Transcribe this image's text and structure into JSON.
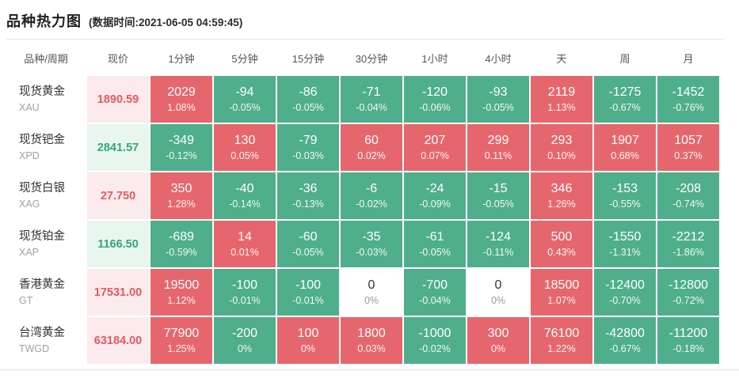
{
  "header": {
    "title": "品种热力图",
    "timestamp_label": "(数据时间:2021-06-05 04:59:45)"
  },
  "colors": {
    "up": "#e5676d",
    "down": "#4fae8c",
    "price_up_text": "#e05a64",
    "price_up_bg": "#fcebec",
    "price_down_text": "#32a67d",
    "price_down_bg": "#e9f6f0"
  },
  "chart_data": {
    "type": "heatmap",
    "title": "品种热力图",
    "timestamp": "2021-06-05 04:59:45",
    "legend_note": "red=up, green=down, white=flat",
    "columns": [
      "品种/周期",
      "现价",
      "1分钟",
      "5分钟",
      "15分钟",
      "30分钟",
      "1小时",
      "4小时",
      "天",
      "周",
      "月"
    ],
    "rows": [
      {
        "name": "现货黄金",
        "code": "XAU",
        "price": "1890.59",
        "trend": "up",
        "cells": [
          {
            "value": "2029",
            "pct": "1.08%",
            "dir": "up"
          },
          {
            "value": "-94",
            "pct": "-0.05%",
            "dir": "down"
          },
          {
            "value": "-86",
            "pct": "-0.05%",
            "dir": "down"
          },
          {
            "value": "-71",
            "pct": "-0.04%",
            "dir": "down"
          },
          {
            "value": "-120",
            "pct": "-0.06%",
            "dir": "down"
          },
          {
            "value": "-93",
            "pct": "-0.05%",
            "dir": "down"
          },
          {
            "value": "2119",
            "pct": "1.13%",
            "dir": "up"
          },
          {
            "value": "-1275",
            "pct": "-0.67%",
            "dir": "down"
          },
          {
            "value": "-1452",
            "pct": "-0.76%",
            "dir": "down"
          }
        ]
      },
      {
        "name": "现货钯金",
        "code": "XPD",
        "price": "2841.57",
        "trend": "down",
        "cells": [
          {
            "value": "-349",
            "pct": "-0.12%",
            "dir": "down"
          },
          {
            "value": "130",
            "pct": "0.05%",
            "dir": "up"
          },
          {
            "value": "-79",
            "pct": "-0.03%",
            "dir": "down"
          },
          {
            "value": "60",
            "pct": "0.02%",
            "dir": "up"
          },
          {
            "value": "207",
            "pct": "0.07%",
            "dir": "up"
          },
          {
            "value": "299",
            "pct": "0.11%",
            "dir": "up"
          },
          {
            "value": "293",
            "pct": "0.10%",
            "dir": "up"
          },
          {
            "value": "1907",
            "pct": "0.68%",
            "dir": "up"
          },
          {
            "value": "1057",
            "pct": "0.37%",
            "dir": "up"
          }
        ]
      },
      {
        "name": "现货白银",
        "code": "XAG",
        "price": "27.750",
        "trend": "up",
        "cells": [
          {
            "value": "350",
            "pct": "1.28%",
            "dir": "up"
          },
          {
            "value": "-40",
            "pct": "-0.14%",
            "dir": "down"
          },
          {
            "value": "-36",
            "pct": "-0.13%",
            "dir": "down"
          },
          {
            "value": "-6",
            "pct": "-0.02%",
            "dir": "down"
          },
          {
            "value": "-24",
            "pct": "-0.09%",
            "dir": "down"
          },
          {
            "value": "-15",
            "pct": "-0.05%",
            "dir": "down"
          },
          {
            "value": "346",
            "pct": "1.26%",
            "dir": "up"
          },
          {
            "value": "-153",
            "pct": "-0.55%",
            "dir": "down"
          },
          {
            "value": "-208",
            "pct": "-0.74%",
            "dir": "down"
          }
        ]
      },
      {
        "name": "现货铂金",
        "code": "XAP",
        "price": "1166.50",
        "trend": "down",
        "cells": [
          {
            "value": "-689",
            "pct": "-0.59%",
            "dir": "down"
          },
          {
            "value": "14",
            "pct": "0.01%",
            "dir": "up"
          },
          {
            "value": "-60",
            "pct": "-0.05%",
            "dir": "down"
          },
          {
            "value": "-35",
            "pct": "-0.03%",
            "dir": "down"
          },
          {
            "value": "-61",
            "pct": "-0.05%",
            "dir": "down"
          },
          {
            "value": "-124",
            "pct": "-0.11%",
            "dir": "down"
          },
          {
            "value": "500",
            "pct": "0.43%",
            "dir": "up"
          },
          {
            "value": "-1550",
            "pct": "-1.31%",
            "dir": "down"
          },
          {
            "value": "-2212",
            "pct": "-1.86%",
            "dir": "down"
          }
        ]
      },
      {
        "name": "香港黄金",
        "code": "GT",
        "price": "17531.00",
        "trend": "up",
        "cells": [
          {
            "value": "19500",
            "pct": "1.12%",
            "dir": "up"
          },
          {
            "value": "-100",
            "pct": "-0.01%",
            "dir": "down"
          },
          {
            "value": "-100",
            "pct": "-0.01%",
            "dir": "down"
          },
          {
            "value": "0",
            "pct": "0%",
            "dir": "flat"
          },
          {
            "value": "-700",
            "pct": "-0.04%",
            "dir": "down"
          },
          {
            "value": "0",
            "pct": "0%",
            "dir": "flat"
          },
          {
            "value": "18500",
            "pct": "1.07%",
            "dir": "up"
          },
          {
            "value": "-12400",
            "pct": "-0.70%",
            "dir": "down"
          },
          {
            "value": "-12800",
            "pct": "-0.72%",
            "dir": "down"
          }
        ]
      },
      {
        "name": "台湾黄金",
        "code": "TWGD",
        "price": "63184.00",
        "trend": "up",
        "cells": [
          {
            "value": "77900",
            "pct": "1.25%",
            "dir": "up"
          },
          {
            "value": "-200",
            "pct": "0%",
            "dir": "down"
          },
          {
            "value": "100",
            "pct": "0%",
            "dir": "up"
          },
          {
            "value": "1800",
            "pct": "0.03%",
            "dir": "up"
          },
          {
            "value": "-1000",
            "pct": "-0.02%",
            "dir": "down"
          },
          {
            "value": "300",
            "pct": "0%",
            "dir": "up"
          },
          {
            "value": "76100",
            "pct": "1.22%",
            "dir": "up"
          },
          {
            "value": "-42800",
            "pct": "-0.67%",
            "dir": "down"
          },
          {
            "value": "-11200",
            "pct": "-0.18%",
            "dir": "down"
          }
        ]
      }
    ]
  }
}
